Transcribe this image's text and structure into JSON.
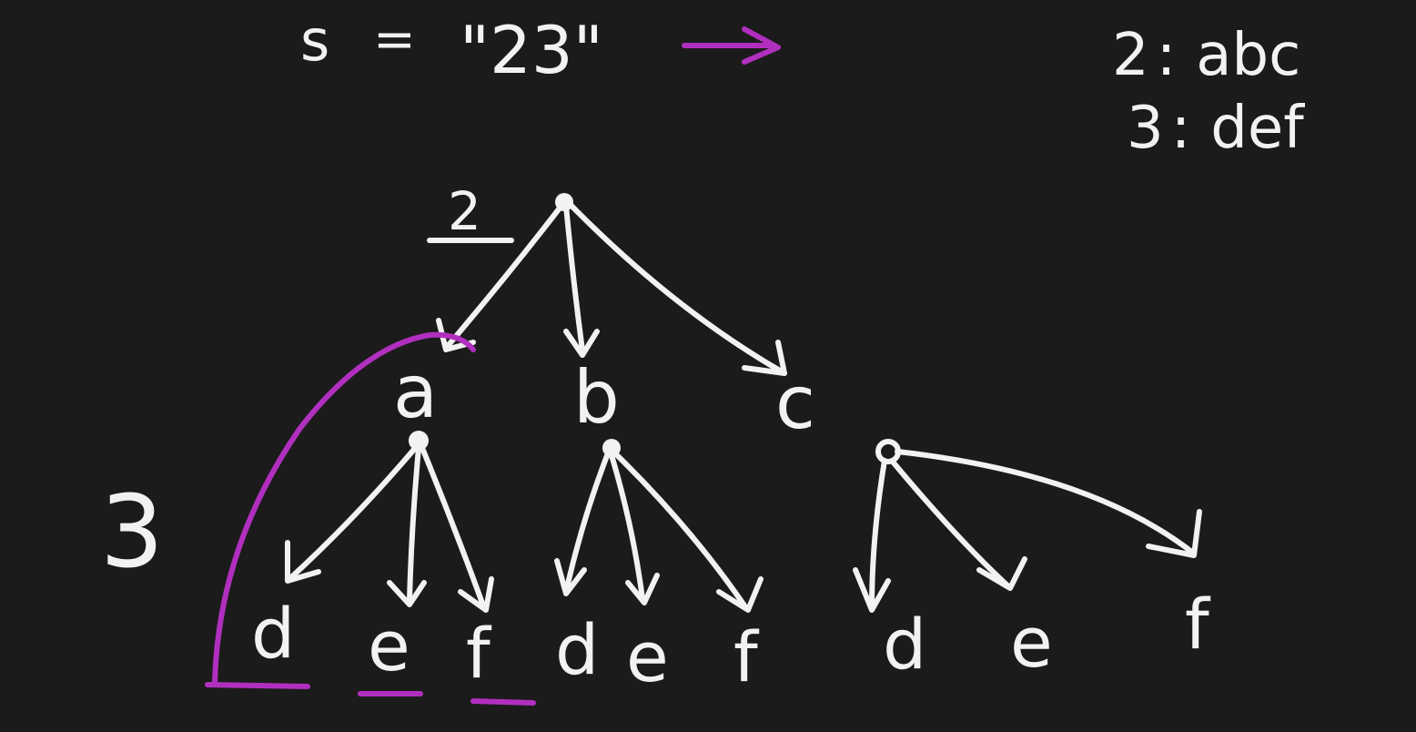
{
  "input": {
    "var": "s",
    "equals": "=",
    "value": "\"23\""
  },
  "mapping": [
    {
      "digit": "2",
      "sep": ":",
      "letters": "abc"
    },
    {
      "digit": "3",
      "sep": ":",
      "letters": "def"
    }
  ],
  "level_labels": {
    "top": "2",
    "second": "3"
  },
  "tree": {
    "level1": [
      "a",
      "b",
      "c"
    ],
    "level2": [
      [
        "d",
        "e",
        "f"
      ],
      [
        "d",
        "e",
        "f"
      ],
      [
        "d",
        "e",
        "f"
      ]
    ]
  },
  "colors": {
    "background": "#1b1b1b",
    "ink": "#f2f2f2",
    "highlight": "#b12fbf"
  }
}
